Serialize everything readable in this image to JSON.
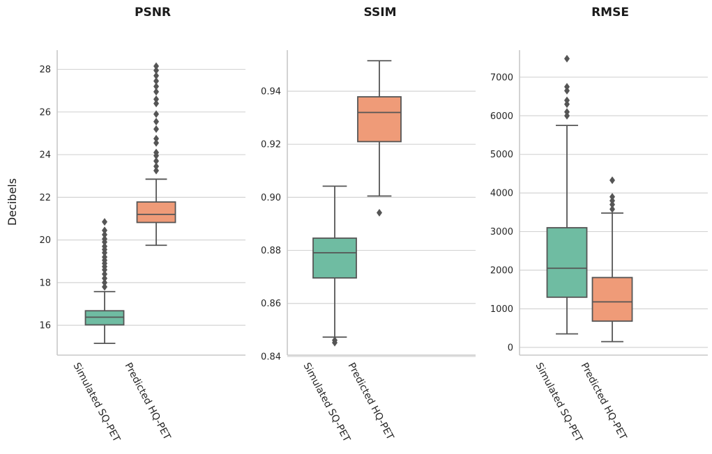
{
  "colors": {
    "simulated": "#6fbca2",
    "predicted": "#ef9b78",
    "line": "#555555",
    "grid": "#d4d4d4"
  },
  "chart_data": [
    {
      "type": "box",
      "title": "PSNR",
      "ylabel": "Decibels",
      "ylim": [
        14.6,
        28.9
      ],
      "yticks": [
        16,
        18,
        20,
        22,
        24,
        26,
        28
      ],
      "tick_labels": [
        "16",
        "18",
        "20",
        "22",
        "24",
        "26",
        "28"
      ],
      "categories": [
        "Simulated SQ-PET",
        "Predicted HQ-PET"
      ],
      "boxes": [
        {
          "whislo": 15.15,
          "q1": 16.02,
          "med": 16.38,
          "q3": 16.68,
          "whishi": 17.58,
          "fliers": [
            17.8,
            18.0,
            18.2,
            18.4,
            18.6,
            18.75,
            18.9,
            19.05,
            19.2,
            19.4,
            19.55,
            19.7,
            19.9,
            20.05,
            20.25,
            20.45,
            20.85
          ]
        },
        {
          "whislo": 19.75,
          "q1": 20.82,
          "med": 21.2,
          "q3": 21.78,
          "whishi": 22.85,
          "fliers": [
            23.25,
            23.45,
            23.7,
            23.95,
            24.1,
            24.55,
            24.75,
            25.2,
            25.55,
            25.9,
            26.4,
            26.6,
            26.95,
            27.2,
            27.45,
            27.7,
            27.95,
            28.15
          ]
        }
      ]
    },
    {
      "type": "box",
      "title": "SSIM",
      "ylim": [
        0.8405,
        0.9555
      ],
      "yticks": [
        0.84,
        0.86,
        0.88,
        0.9,
        0.92,
        0.94
      ],
      "tick_labels": [
        "0.84",
        "0.86",
        "0.88",
        "0.90",
        "0.92",
        "0.94"
      ],
      "categories": [
        "Simulated SQ-PET",
        "Predicted HQ-PET"
      ],
      "boxes": [
        {
          "whislo": 0.8473,
          "q1": 0.8696,
          "med": 0.8791,
          "q3": 0.8846,
          "whishi": 0.9042,
          "fliers": [
            0.8452,
            0.8461
          ]
        },
        {
          "whislo": 0.9005,
          "q1": 0.921,
          "med": 0.932,
          "q3": 0.9379,
          "whishi": 0.9515,
          "fliers": [
            0.8942
          ]
        }
      ]
    },
    {
      "type": "box",
      "title": "RMSE",
      "ylim": [
        -200,
        7700
      ],
      "yticks": [
        0,
        1000,
        2000,
        3000,
        4000,
        5000,
        6000,
        7000
      ],
      "tick_labels": [
        "0",
        "1000",
        "2000",
        "3000",
        "4000",
        "5000",
        "6000",
        "7000"
      ],
      "categories": [
        "Simulated SQ-PET",
        "Predicted HQ-PET"
      ],
      "boxes": [
        {
          "whislo": 350,
          "q1": 1300,
          "med": 2050,
          "q3": 3100,
          "whishi": 5750,
          "fliers": [
            6000,
            6100,
            6300,
            6400,
            6650,
            6750,
            7480
          ]
        },
        {
          "whislo": 150,
          "q1": 680,
          "med": 1180,
          "q3": 1810,
          "whishi": 3480,
          "fliers": [
            3580,
            3700,
            3800,
            3900,
            4330
          ]
        }
      ]
    }
  ]
}
